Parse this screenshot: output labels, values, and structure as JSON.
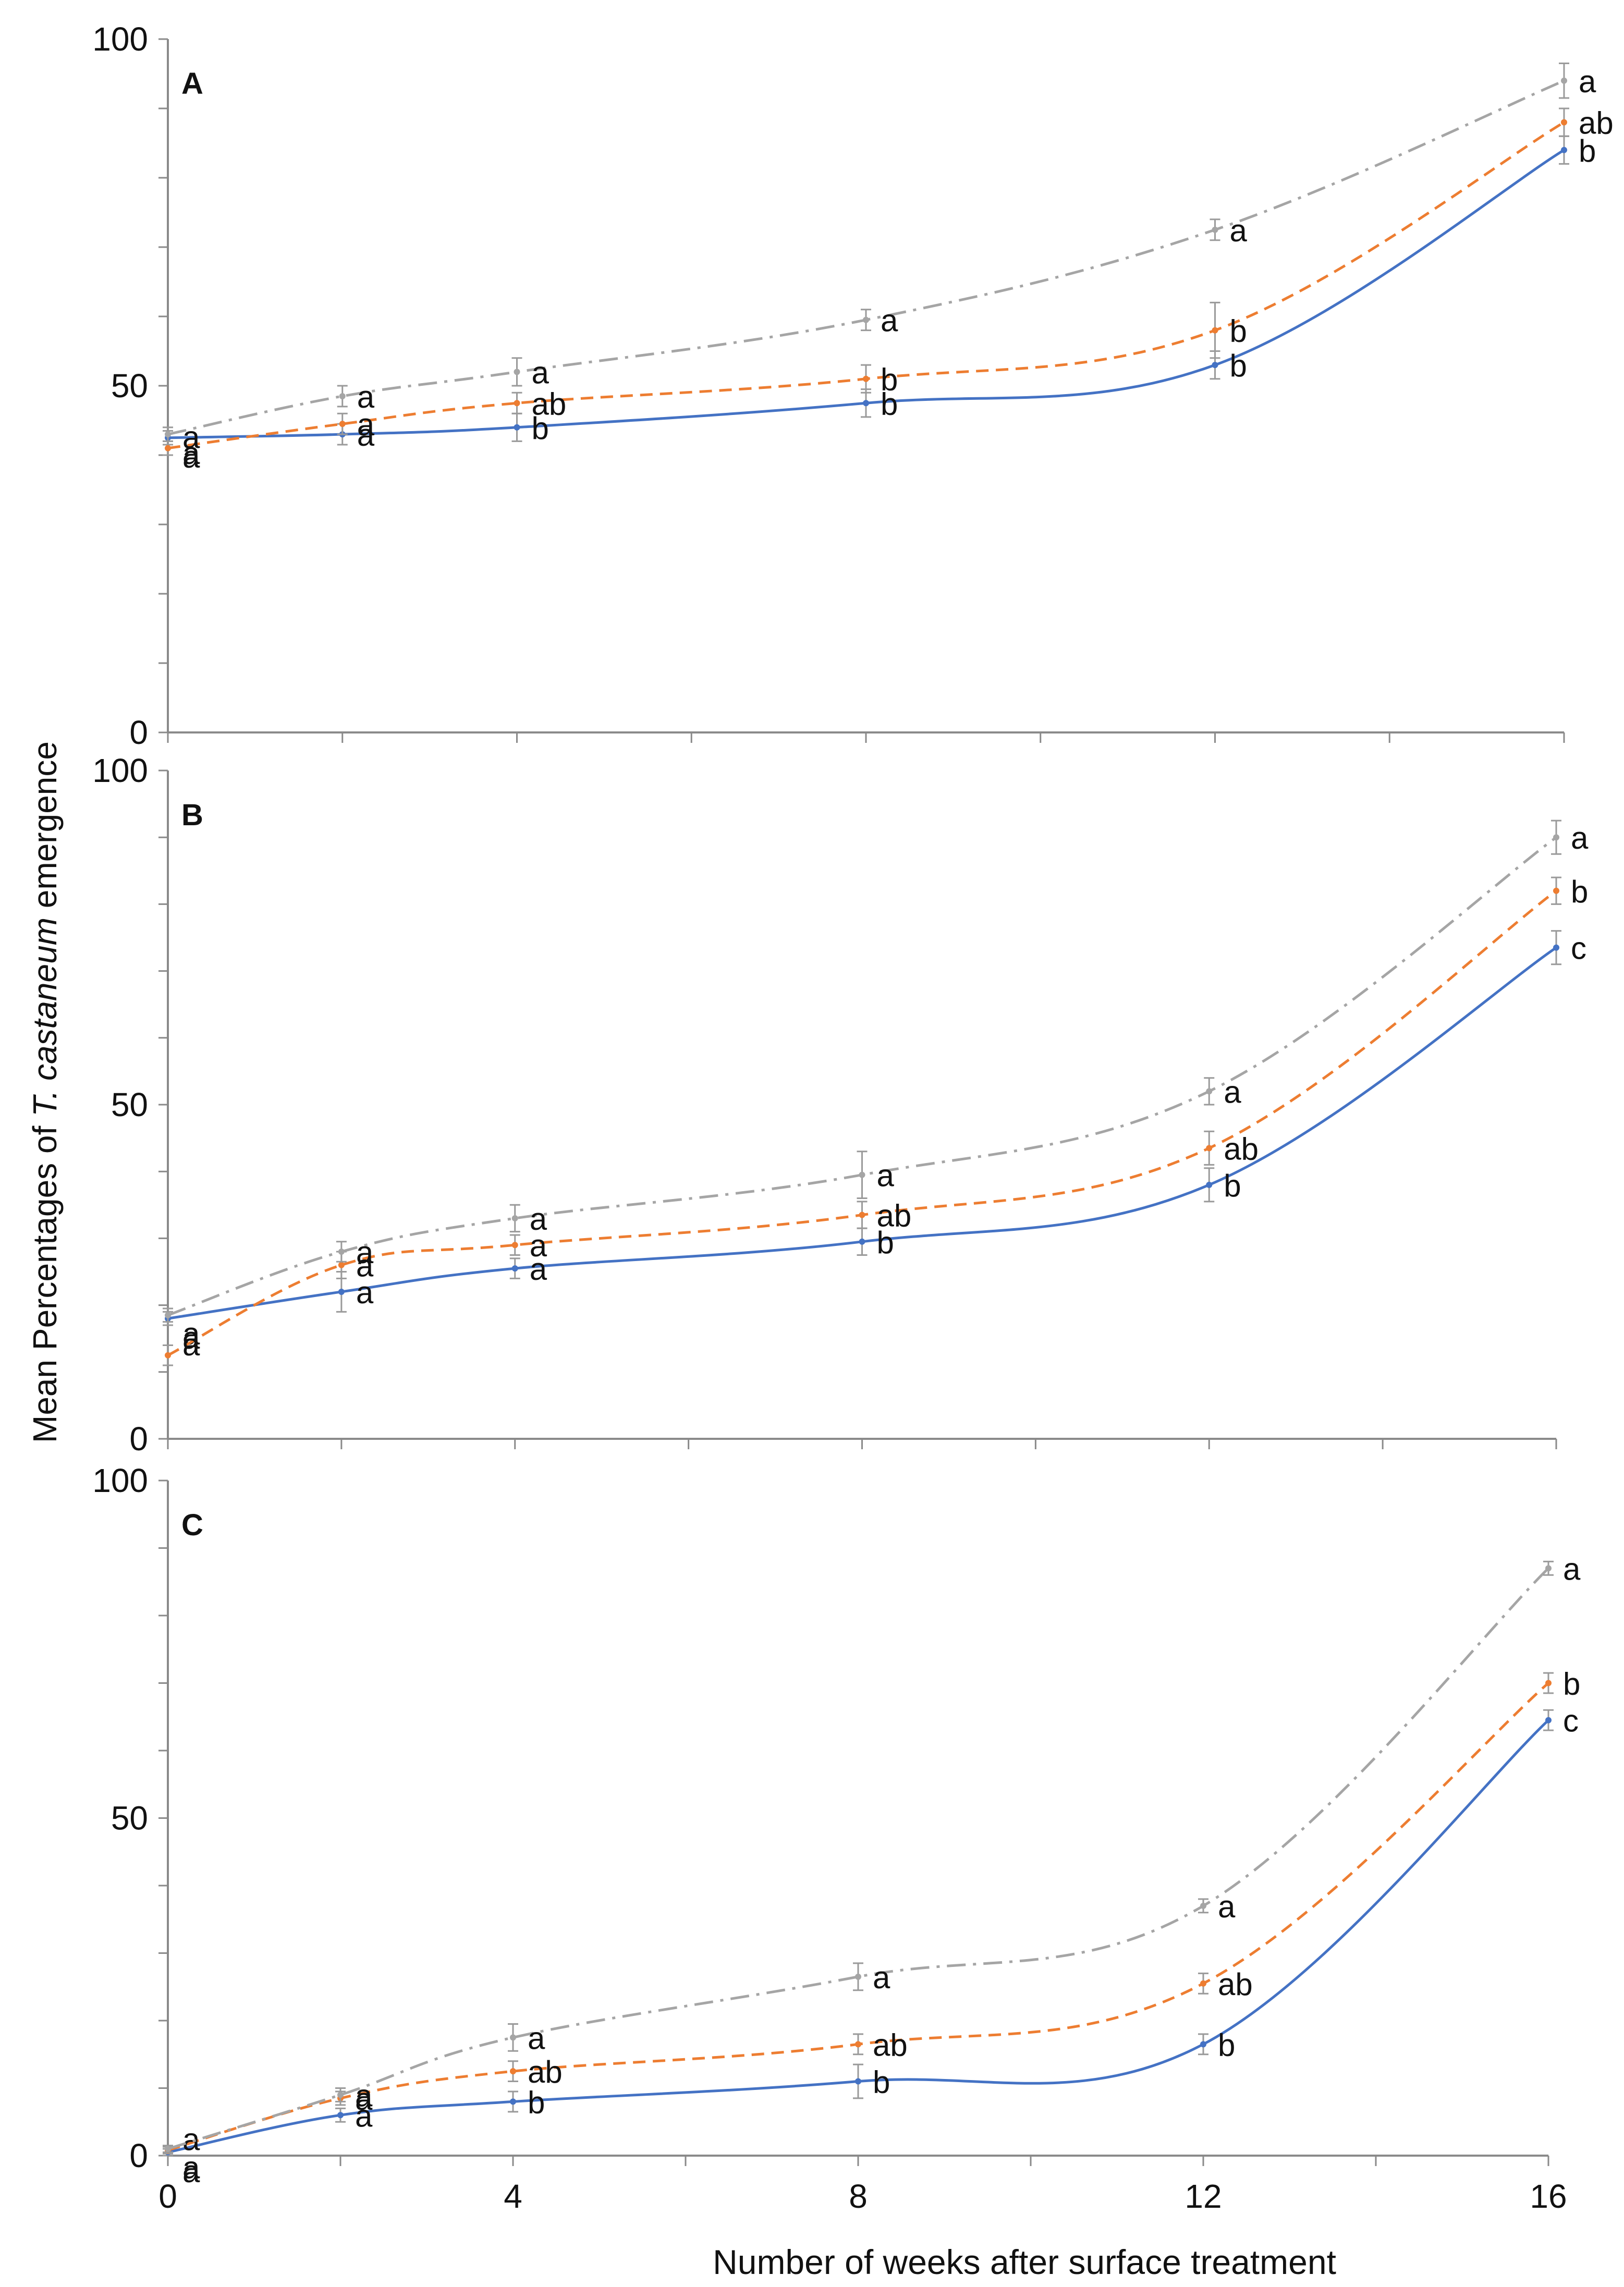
{
  "colors": {
    "axis": "#8a8a8a",
    "error_bar": "#9a9a9a",
    "text": "#111111"
  },
  "figure": {
    "ylabel": "Mean Percentages of ",
    "ylabel_italic": "T. castaneum",
    "ylabel_end": "  emergence",
    "xlabel": "Number  of weeks after surface treatment"
  },
  "chart_data": [
    {
      "panel": "A",
      "type": "line",
      "x": [
        0,
        2,
        4,
        8,
        12,
        16
      ],
      "ylim": [
        0,
        100
      ],
      "xlim": [
        0,
        16
      ],
      "y_ticks": [
        "0",
        "50",
        "100"
      ],
      "x_ticks": [],
      "series": [
        {
          "name": "series-1",
          "color": "#4472c4",
          "dash": "",
          "values": [
            42.5,
            43.0,
            44.0,
            47.5,
            53.0,
            84.0
          ],
          "errors": [
            1.0,
            1.5,
            2.0,
            2.0,
            2.0,
            2.0
          ],
          "letters": [
            "a",
            "a",
            "b",
            "b",
            "b",
            "b"
          ]
        },
        {
          "name": "series-2",
          "color": "#ed7d31",
          "dash": "24,14",
          "values": [
            41.0,
            44.5,
            47.5,
            51.0,
            58.0,
            88.0
          ],
          "errors": [
            1.0,
            1.5,
            1.5,
            2.0,
            4.0,
            2.0
          ],
          "letters": [
            "a",
            "a",
            "ab",
            "b",
            "b",
            "ab"
          ]
        },
        {
          "name": "series-3",
          "color": "#a5a5a5",
          "dash": "36,14,6,14",
          "values": [
            43.0,
            48.5,
            52.0,
            59.5,
            72.5,
            94.0
          ],
          "errors": [
            1.0,
            1.5,
            2.0,
            1.5,
            1.5,
            2.5
          ],
          "letters": [
            "a",
            "a",
            "a",
            "a",
            "a",
            "a"
          ]
        }
      ]
    },
    {
      "panel": "B",
      "type": "line",
      "x": [
        0,
        2,
        4,
        8,
        12,
        16
      ],
      "ylim": [
        0,
        100
      ],
      "xlim": [
        0,
        16
      ],
      "y_ticks": [
        "0",
        "50",
        "100"
      ],
      "x_ticks": [],
      "series": [
        {
          "name": "series-1",
          "color": "#4472c4",
          "dash": "",
          "values": [
            18.0,
            22.0,
            25.5,
            29.5,
            38.0,
            73.5
          ],
          "errors": [
            1.0,
            3.0,
            1.5,
            2.0,
            2.5,
            2.5
          ],
          "letters": [
            "a",
            "a",
            "a",
            "b",
            "b",
            "c"
          ]
        },
        {
          "name": "series-2",
          "color": "#ed7d31",
          "dash": "24,14",
          "values": [
            12.5,
            26.0,
            29.0,
            33.5,
            43.5,
            82.0
          ],
          "errors": [
            1.5,
            2.0,
            1.5,
            2.0,
            2.5,
            2.0
          ],
          "letters": [
            "a",
            "a",
            "a",
            "ab",
            "ab",
            "b"
          ]
        },
        {
          "name": "series-3",
          "color": "#a5a5a5",
          "dash": "36,14,6,14",
          "values": [
            18.5,
            28.0,
            33.0,
            39.5,
            52.0,
            90.0
          ],
          "errors": [
            1.0,
            1.5,
            2.0,
            3.5,
            2.0,
            2.5
          ],
          "letters": [
            "a",
            "a",
            "a",
            "a",
            "a",
            "a"
          ]
        }
      ]
    },
    {
      "panel": "C",
      "type": "line",
      "x": [
        0,
        2,
        4,
        8,
        12,
        16
      ],
      "ylim": [
        0,
        100
      ],
      "xlim": [
        0,
        16
      ],
      "y_ticks": [
        "0",
        "50",
        "100"
      ],
      "x_ticks": [
        "0",
        "4",
        "8",
        "12",
        "16"
      ],
      "series": [
        {
          "name": "series-1",
          "color": "#4472c4",
          "dash": "",
          "values": [
            0.5,
            6.0,
            8.0,
            11.0,
            16.5,
            64.5
          ],
          "errors": [
            0.5,
            1.0,
            1.5,
            2.5,
            1.5,
            1.5
          ],
          "letters": [
            "a",
            "a",
            "b",
            "b",
            "b",
            "c"
          ]
        },
        {
          "name": "series-2",
          "color": "#ed7d31",
          "dash": "24,14",
          "values": [
            0.8,
            8.5,
            12.5,
            16.5,
            25.5,
            70.0
          ],
          "errors": [
            0.5,
            1.0,
            1.5,
            1.5,
            1.5,
            1.5
          ],
          "letters": [
            "a",
            "a",
            "ab",
            "ab",
            "ab",
            "b"
          ]
        },
        {
          "name": "series-3",
          "color": "#a5a5a5",
          "dash": "36,14,6,14",
          "values": [
            1.0,
            9.0,
            17.5,
            26.5,
            37.0,
            87.0
          ],
          "errors": [
            0.5,
            1.0,
            2.0,
            2.0,
            1.0,
            1.0
          ],
          "letters": [
            "a",
            "a",
            "a",
            "a",
            "a",
            "a"
          ]
        }
      ]
    }
  ]
}
